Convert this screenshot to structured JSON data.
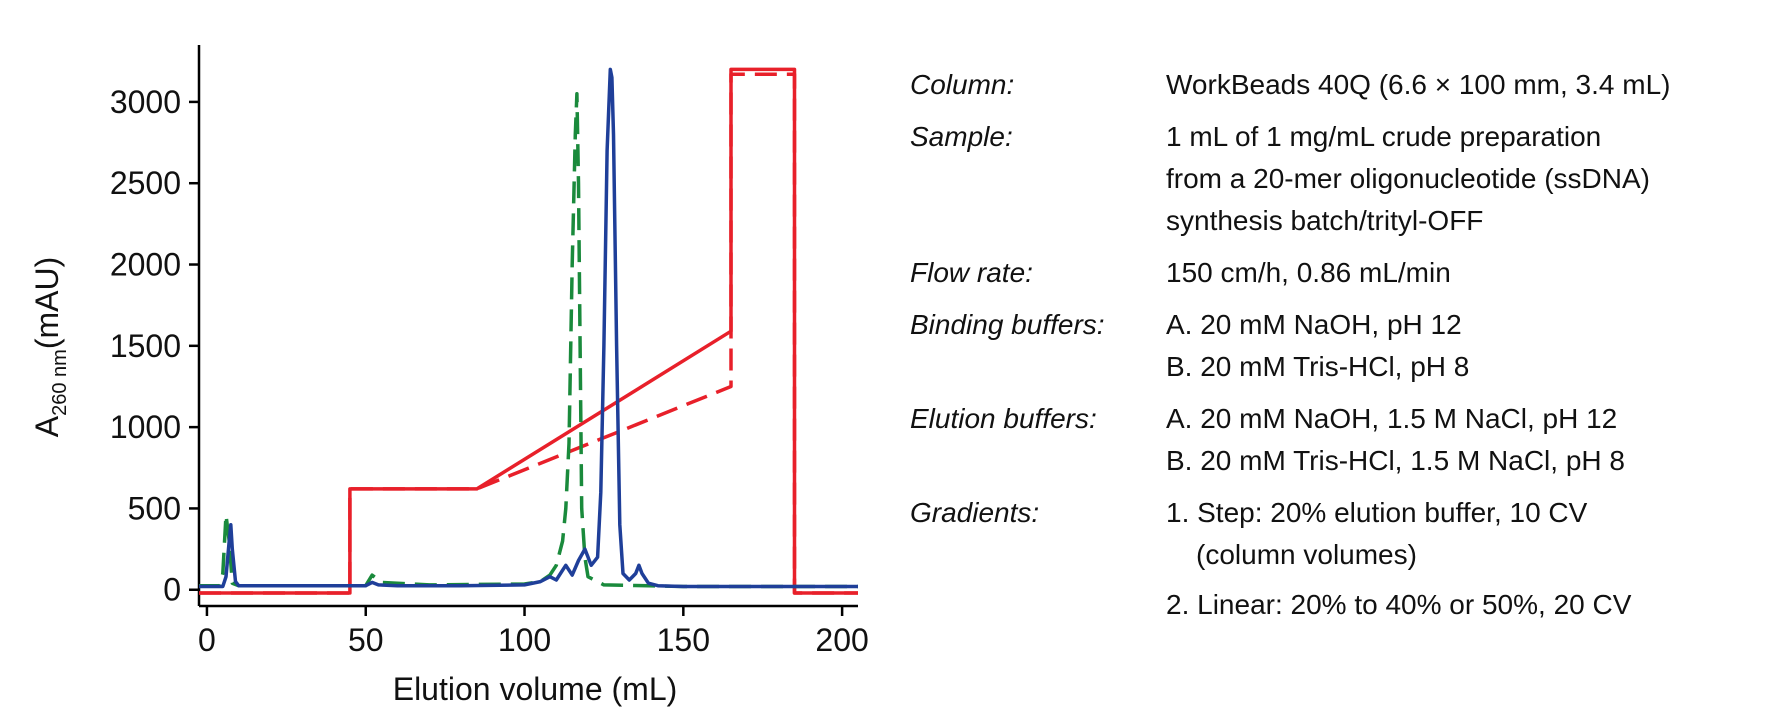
{
  "chart_data": {
    "type": "line",
    "x_label": "Elution volume (mL)",
    "y_label": {
      "main": "A",
      "sub": "260 nm",
      "unit": "(mAU)"
    },
    "xlim": [
      -2.5,
      205
    ],
    "xticks": [
      0,
      50,
      100,
      150,
      200
    ],
    "ylim": [
      -100,
      3350
    ],
    "yticks": [
      0,
      500,
      1000,
      1500,
      2000,
      2500,
      3000
    ],
    "series": [
      {
        "color": "#e8202a",
        "dash": false,
        "x": [
          -2.5,
          45,
          45,
          85,
          165,
          165,
          185,
          185,
          205
        ],
        "values": [
          -20,
          -20,
          620,
          620,
          1590,
          3200,
          3200,
          -20,
          -20
        ]
      },
      {
        "color": "#e8202a",
        "dash": true,
        "x": [
          -2.5,
          45,
          45,
          85,
          165,
          165,
          185,
          185,
          205
        ],
        "values": [
          -20,
          -20,
          620,
          620,
          1250,
          3170,
          3170,
          -20,
          -20
        ]
      },
      {
        "color": "#1a8a3c",
        "dash": true,
        "x": [
          -2.5,
          4,
          5,
          6,
          7,
          8,
          10,
          30,
          50,
          52,
          55,
          70,
          100,
          105,
          108,
          110,
          112,
          113,
          114,
          115,
          116,
          116.5,
          117,
          117.5,
          118,
          119,
          120,
          125,
          150,
          205
        ],
        "values": [
          25,
          25,
          100,
          460,
          300,
          40,
          25,
          25,
          25,
          90,
          45,
          30,
          35,
          50,
          90,
          150,
          300,
          500,
          900,
          2000,
          2800,
          3050,
          2500,
          1500,
          500,
          200,
          80,
          30,
          20,
          20
        ]
      },
      {
        "color": "#1f3f99",
        "dash": false,
        "x": [
          -2.5,
          5,
          6,
          7,
          7.5,
          8,
          9,
          10,
          20,
          40,
          50,
          52,
          54,
          60,
          80,
          100,
          105,
          108,
          110,
          112,
          113,
          115,
          117,
          119,
          121,
          123,
          124,
          125,
          126,
          127,
          127.5,
          128,
          129,
          130,
          131,
          133,
          135,
          136,
          137,
          139,
          142,
          150,
          180,
          205
        ],
        "values": [
          20,
          20,
          80,
          300,
          400,
          250,
          50,
          25,
          25,
          25,
          25,
          45,
          30,
          25,
          25,
          30,
          50,
          80,
          60,
          120,
          150,
          90,
          180,
          250,
          150,
          200,
          600,
          1500,
          2700,
          3200,
          3150,
          2800,
          1500,
          400,
          100,
          60,
          100,
          150,
          100,
          40,
          25,
          20,
          20,
          20
        ]
      }
    ]
  },
  "info": {
    "rows": [
      {
        "label": "Column:",
        "lines": [
          "WorkBeads 40Q (6.6 × 100 mm, 3.4 mL)"
        ]
      },
      {
        "label": "Sample:",
        "lines": [
          "1 mL of 1 mg/mL crude preparation",
          "from a 20-mer oligonucleotide (ssDNA)",
          "synthesis batch/trityl-OFF"
        ]
      },
      {
        "label": "Flow rate:",
        "lines": [
          "150 cm/h, 0.86 mL/min"
        ]
      },
      {
        "label": "Binding buffers:",
        "lines": [
          "A. 20 mM NaOH, pH 12",
          "B. 20 mM Tris-HCl, pH 8"
        ]
      },
      {
        "label": "Elution buffers:",
        "lines": [
          "A. 20 mM NaOH, 1.5 M NaCl, pH 12",
          "B. 20 mM Tris-HCl, 1.5 M NaCl, pH 8"
        ]
      },
      {
        "label": "Gradients:",
        "lines": [
          "1. Step: 20% elution buffer, 10 CV",
          "(column volumes)",
          "2. Linear: 20% to 40% or 50%, 20 CV"
        ]
      }
    ]
  }
}
